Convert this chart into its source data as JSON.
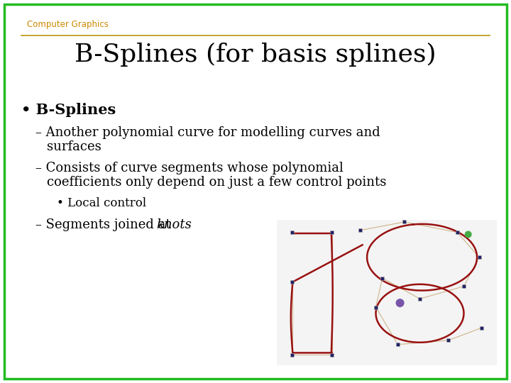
{
  "background_color": "#ffffff",
  "border_color": "#22bb22",
  "border_linewidth": 2.5,
  "header_text": "Computer Graphics",
  "header_color": "#cc8800",
  "header_fontsize": 8.5,
  "divider_color": "#b8960a",
  "title": "B-Splines (for basis splines)",
  "title_fontsize": 26,
  "title_color": "#000000",
  "bullet_fontsize": 15,
  "sub_fontsize": 13,
  "subsub_fontsize": 12,
  "bullet1": "B-Splines",
  "sub1a": "Another polynomial curve for modelling curves and",
  "sub1b": "surfaces",
  "sub2a": "Consists of curve segments whose polynomial",
  "sub2b": "coefficients only depend on just a few control points",
  "subsub1": "Local control",
  "sub3_prefix": "Segments joined at ",
  "sub3_italic": "knots",
  "text_color": "#000000",
  "inset_bg": "#f4f4f4",
  "curve_color": "#991111",
  "ctrl_poly_color": "#c8a878",
  "ctrl_pt_color": "#222266",
  "knot_color1": "#7755aa",
  "knot_color2": "#44aa44"
}
